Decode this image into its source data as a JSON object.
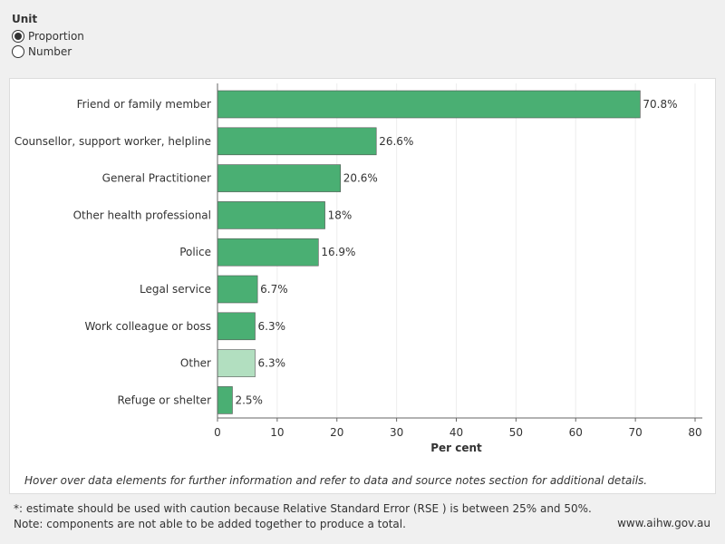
{
  "unit": {
    "title": "Unit",
    "options": [
      {
        "label": "Proportion",
        "selected": true
      },
      {
        "label": "Number",
        "selected": false
      }
    ]
  },
  "chart_data": {
    "type": "bar",
    "orientation": "horizontal",
    "categories": [
      "Friend or family member",
      "Counsellor, support worker, helpline",
      "General Practitioner",
      "Other health professional",
      "Police",
      "Legal service",
      "Work colleague or boss",
      "Other",
      "Refuge or shelter"
    ],
    "values": [
      70.8,
      26.6,
      20.6,
      18,
      16.9,
      6.7,
      6.3,
      6.3,
      2.5
    ],
    "value_labels": [
      "70.8%",
      "26.6%",
      "20.6%",
      "18%",
      "16.9%",
      "6.7%",
      "6.3%",
      "6.3%",
      "2.5%"
    ],
    "highlighted": [
      false,
      false,
      false,
      false,
      false,
      false,
      false,
      true,
      false
    ],
    "xlabel": "Per cent",
    "ylabel": "",
    "xlim": [
      0,
      80
    ],
    "xticks": [
      0,
      10,
      20,
      30,
      40,
      50,
      60,
      70,
      80
    ],
    "grid": true,
    "colors": {
      "bar": "#4aaf73",
      "bar_highlight": "#b2dfc0",
      "bar_stroke": "#555555"
    }
  },
  "notes": {
    "hover": "Hover over data elements for further information and refer to data and source notes section for additional details.",
    "footnote": "*: estimate should be used with caution because Relative Standard Error (RSE ) is between 25% and 50%. Note: components are not able to be added together to produce a total.",
    "site": "www.aihw.gov.au"
  }
}
